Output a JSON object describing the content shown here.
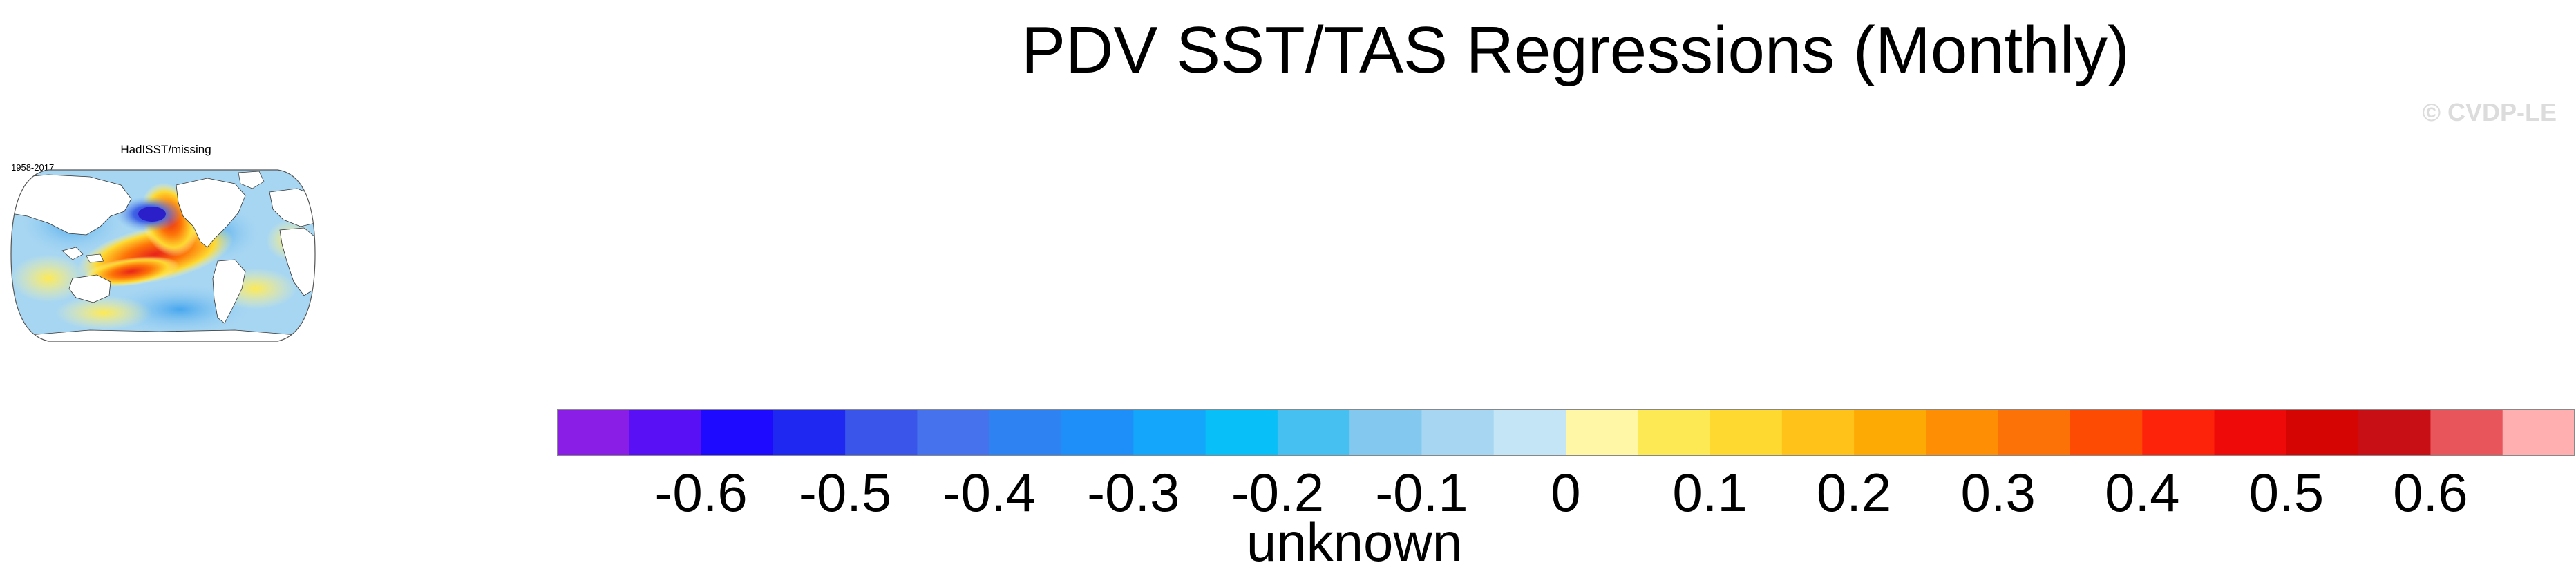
{
  "figure": {
    "title": "PDV SST/TAS Regressions (Monthly)",
    "watermark": "© CVDP-LE"
  },
  "panel": {
    "dataset": "HadISST/missing",
    "years": "1958-2017",
    "projection": "robinson",
    "field_description_colors": {
      "north_pacific_cold_center": "#3a2fd8",
      "tropical_pacific_warm": "#e8231a",
      "ocean_background": "#9fd3f0",
      "land": "#ffffff"
    }
  },
  "colorbar": {
    "ticks": [
      "-0.6",
      "-0.5",
      "-0.4",
      "-0.3",
      "-0.2",
      "-0.1",
      "0",
      "0.1",
      "0.2",
      "0.3",
      "0.4",
      "0.5",
      "0.6"
    ],
    "units_label": "unknown",
    "colors": [
      "#8a1ee6",
      "#5a10f5",
      "#1e0aff",
      "#1e28f0",
      "#3a55ea",
      "#4673ed",
      "#2f82f2",
      "#1e8ff8",
      "#14a6fb",
      "#08bff8",
      "#46c0f0",
      "#82c8ef",
      "#a7d6f2",
      "#c4e5f5",
      "#fff7a6",
      "#fde954",
      "#fed92f",
      "#fec218",
      "#feaa04",
      "#fe8e04",
      "#fd7207",
      "#fd4b04",
      "#fd220a",
      "#ee0a08",
      "#d40503",
      "#c80f16",
      "#e8555a",
      "#ffafaf"
    ]
  },
  "chart_data": {
    "type": "heatmap",
    "title": "PDV SST/TAS Regressions (Monthly)",
    "subtitle": "HadISST/missing",
    "period": "1958-2017",
    "colorbar_ticks": [
      -0.6,
      -0.5,
      -0.4,
      -0.3,
      -0.2,
      -0.1,
      0,
      0.1,
      0.2,
      0.3,
      0.4,
      0.5,
      0.6
    ],
    "colorbar_range": [
      -0.65,
      0.65
    ],
    "colorbar_label": "unknown"
  }
}
